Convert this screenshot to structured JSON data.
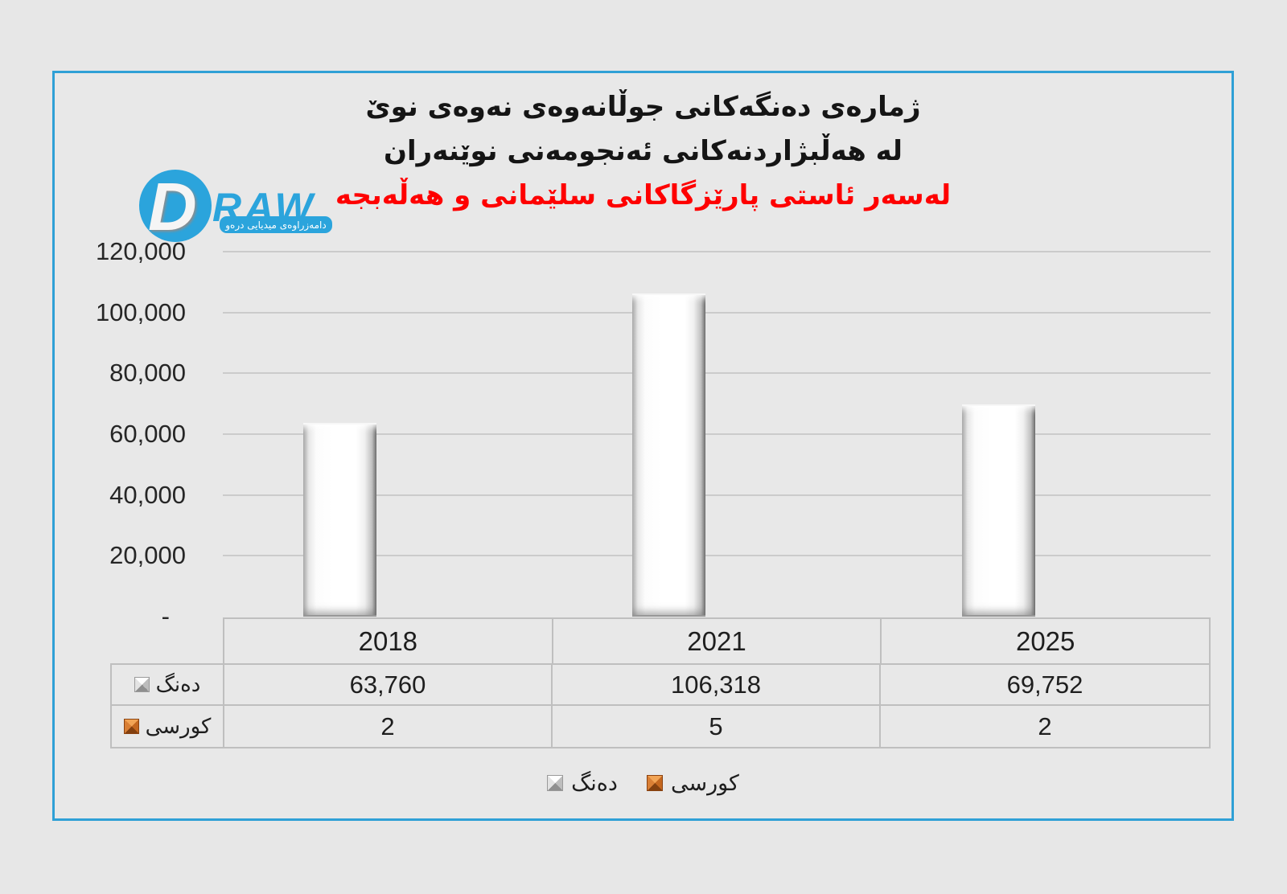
{
  "logo": {
    "d": "D",
    "raw": "RAW",
    "tagline": "دامەزراوەی میدیایی درەو"
  },
  "title": {
    "line1": "ژمارەی دەنگەکانی جوڵانەوەی نەوەی نوێ",
    "line2": "لە هەڵبژاردنەکانی ئەنجومەنی نوێنەران",
    "line3": "لەسەر ئاستی پارێزگاکانی سلێمانی و هەڵەبجە"
  },
  "chart_data": {
    "type": "bar",
    "title": "ژمارەی دەنگەکانی جوڵانەوەی نەوەی نوێ لە هەڵبژاردنەکانی ئەنجومەنی نوێنەران لەسەر ئاستی پارێزگاکانی سلێمانی و هەڵەبجە",
    "categories": [
      "2018",
      "2021",
      "2025"
    ],
    "series": [
      {
        "name": "دەنگ",
        "values": [
          63760,
          106318,
          69752
        ],
        "color": "#FFFFFF"
      },
      {
        "name": "کورسی",
        "values": [
          2,
          5,
          2
        ],
        "color": "#C0622A"
      }
    ],
    "ylim": [
      0,
      120000
    ],
    "ytick_step": 20000,
    "ytick_labels_top_down": [
      "120,000",
      "100,000",
      "80,000",
      "60,000",
      "40,000",
      "20,000",
      "-"
    ],
    "grid": true,
    "legend_position": "bottom",
    "has_data_table": true
  },
  "table": {
    "columns": [
      "2018",
      "2021",
      "2025"
    ],
    "rows": [
      {
        "label": "دەنگ",
        "values": [
          "63,760",
          "106,318",
          "69,752"
        ]
      },
      {
        "label": "کورسی",
        "values": [
          "2",
          "5",
          "2"
        ]
      }
    ]
  },
  "legend": {
    "items": [
      {
        "label": "دەنگ",
        "swatch": "white"
      },
      {
        "label": "کورسی",
        "swatch": "orange"
      }
    ]
  },
  "colors": {
    "frame_blue": "#2FA0D6",
    "logo_blue": "#2BA4DC",
    "title_red": "#FE0000",
    "background": "#E7E7E7",
    "gridline": "#CBCBCB",
    "table_border": "#BFBFBF",
    "text": "#1F1F1F",
    "vote_bar": "#FFFFFF",
    "seat_bar": "#C0622A"
  }
}
